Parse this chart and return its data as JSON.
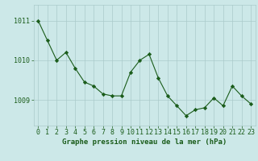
{
  "x": [
    0,
    1,
    2,
    3,
    4,
    5,
    6,
    7,
    8,
    9,
    10,
    11,
    12,
    13,
    14,
    15,
    16,
    17,
    18,
    19,
    20,
    21,
    22,
    23
  ],
  "y": [
    1011.0,
    1010.5,
    1010.0,
    1010.2,
    1009.8,
    1009.45,
    1009.35,
    1009.15,
    1009.1,
    1009.1,
    1009.7,
    1010.0,
    1010.15,
    1009.55,
    1009.1,
    1008.85,
    1008.6,
    1008.75,
    1008.8,
    1009.05,
    1008.85,
    1009.35,
    1009.1,
    1008.9
  ],
  "line_color": "#1a5c1a",
  "marker": "D",
  "marker_size": 2.2,
  "background_color": "#cce8e8",
  "grid_color": "#aacaca",
  "xlabel": "Graphe pression niveau de la mer (hPa)",
  "xlabel_color": "#1a5c1a",
  "xlabel_fontsize": 6.5,
  "yticks": [
    1009,
    1010,
    1011
  ],
  "ylim": [
    1008.35,
    1011.4
  ],
  "xlim": [
    -0.5,
    23.5
  ],
  "tick_color": "#1a5c1a",
  "tick_fontsize": 6.0,
  "figsize": [
    3.2,
    2.0
  ],
  "dpi": 100
}
